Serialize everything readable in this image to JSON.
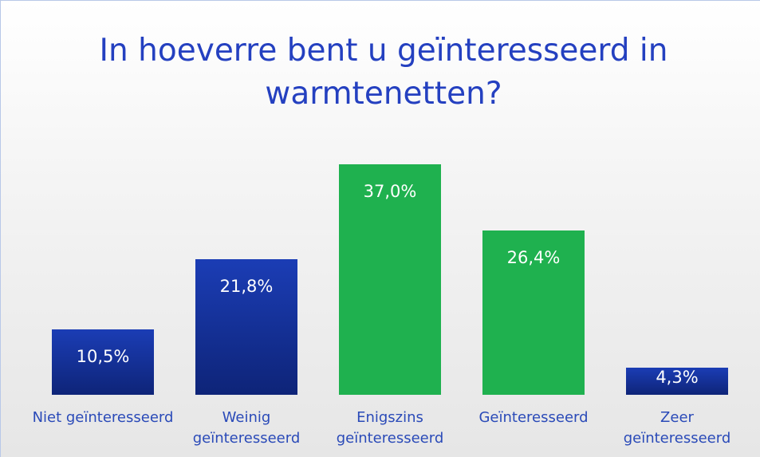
{
  "chart_data": {
    "type": "bar",
    "title": "In hoeverre bent u geïnteresseerd in warmtenetten?",
    "categories": [
      "Niet geïnteresseerd",
      "Weinig geïnteresseerd",
      "Enigszins geïnteresseerd",
      "Geïnteresseerd",
      "Zeer geïnteresseerd"
    ],
    "values": [
      10.5,
      21.8,
      37.0,
      26.4,
      4.3
    ],
    "value_labels": [
      "10,5%",
      "21,8%",
      "37,0%",
      "26,4%",
      "4,3%"
    ],
    "colors": [
      "#1733a3",
      "#1733a3",
      "#1fb14f",
      "#1fb14f",
      "#1733a3"
    ]
  }
}
